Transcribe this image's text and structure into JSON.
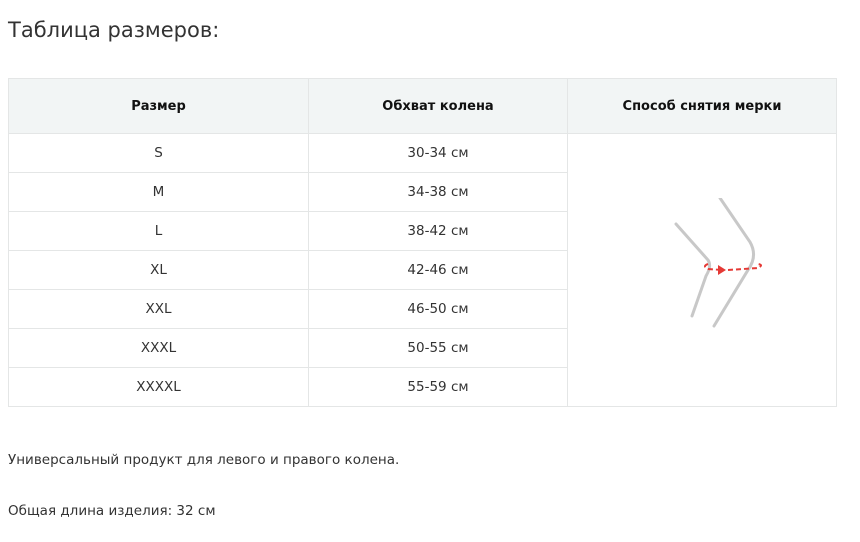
{
  "title": "Таблица размеров:",
  "table": {
    "headers": [
      "Размер",
      "Обхват колена",
      "Способ снятия мерки"
    ],
    "rows": [
      [
        "S",
        "30-34 см"
      ],
      [
        "M",
        "34-38 см"
      ],
      [
        "L",
        "38-42 см"
      ],
      [
        "XL",
        "42-46 см"
      ],
      [
        "XXL",
        "46-50 см"
      ],
      [
        "XXXL",
        "50-55 см"
      ],
      [
        "XXXXL",
        "55-59 см"
      ]
    ]
  },
  "illustration_icon": "knee-measurement",
  "colors": {
    "measure_line": "#e53935",
    "leg_line": "#c8c8c8",
    "header_bg": "#f2f5f5"
  },
  "notes": [
    "Универсальный продукт для левого и правого колена.",
    "Общая длина изделия: 32 см"
  ]
}
